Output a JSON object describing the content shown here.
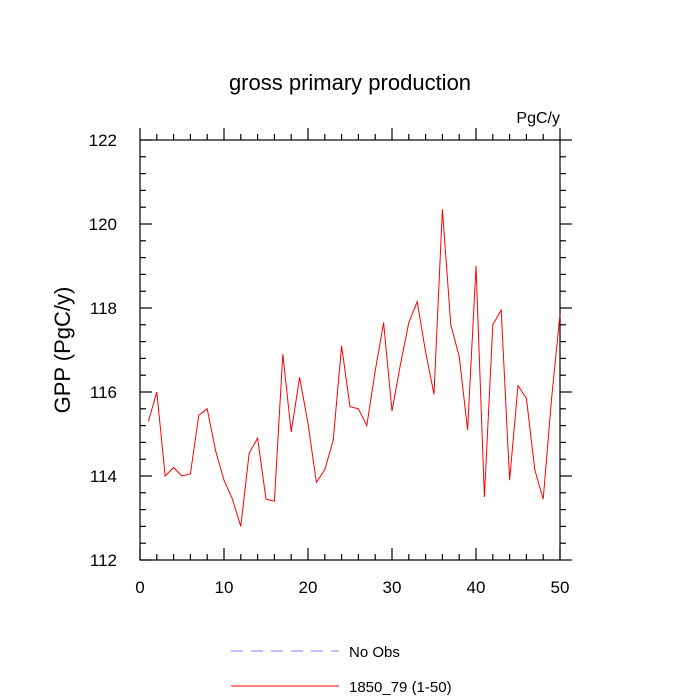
{
  "chart_data": {
    "type": "line",
    "title": "gross primary production",
    "units_label": "PgC/y",
    "xlabel": "",
    "ylabel": "GPP  (PgC/y)",
    "xlim": [
      0,
      50
    ],
    "ylim": [
      112,
      122
    ],
    "x_ticks": [
      0,
      10,
      20,
      30,
      40,
      50
    ],
    "y_ticks": [
      112,
      114,
      116,
      118,
      120,
      122
    ],
    "x_tick_labels": [
      "0",
      "10",
      "20",
      "30",
      "40",
      "50"
    ],
    "y_tick_labels": [
      "112",
      "114",
      "116",
      "118",
      "120",
      "122"
    ],
    "grid": false,
    "legend_position": "bottom",
    "legend": [
      {
        "label": "No Obs",
        "color": "#8080ff",
        "style": "dashed"
      },
      {
        "label": "1850_79 (1-50)",
        "color": "#ff0000",
        "style": "solid"
      }
    ],
    "series": [
      {
        "name": "1850_79 (1-50)",
        "color": "#ff0000",
        "x": [
          1,
          2,
          3,
          4,
          5,
          6,
          7,
          8,
          9,
          10,
          11,
          12,
          13,
          14,
          15,
          16,
          17,
          18,
          19,
          20,
          21,
          22,
          23,
          24,
          25,
          26,
          27,
          28,
          29,
          30,
          31,
          32,
          33,
          34,
          35,
          36,
          37,
          38,
          39,
          40,
          41,
          42,
          43,
          44,
          45,
          46,
          47,
          48,
          49,
          50
        ],
        "values": [
          115.3,
          116.0,
          114.0,
          114.2,
          114.0,
          114.05,
          115.45,
          115.6,
          114.6,
          113.9,
          113.45,
          112.8,
          114.55,
          114.9,
          113.45,
          113.4,
          116.9,
          115.05,
          116.35,
          115.25,
          113.85,
          114.15,
          114.85,
          117.1,
          115.65,
          115.6,
          115.2,
          116.5,
          117.65,
          115.55,
          116.65,
          117.65,
          118.15,
          116.95,
          115.95,
          120.35,
          117.6,
          116.85,
          115.1,
          119.0,
          113.5,
          117.6,
          117.95,
          113.9,
          116.15,
          115.85,
          114.15,
          113.45,
          115.85,
          117.85
        ]
      }
    ]
  }
}
